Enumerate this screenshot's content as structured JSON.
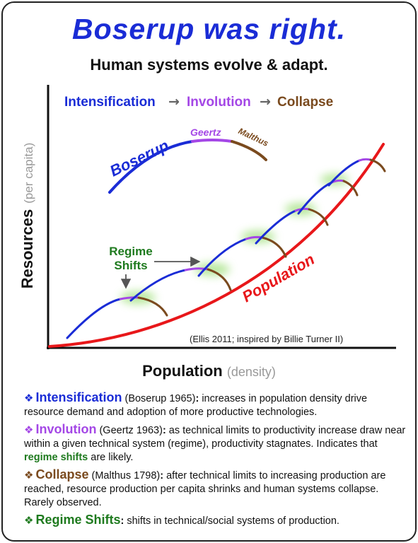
{
  "title": "Boserup was right.",
  "subtitle": "Human systems evolve & adapt.",
  "phase_row": {
    "intensification": "Intensification",
    "involution": "Involution",
    "collapse": "Collapse",
    "arrow": "→"
  },
  "mini_curve_labels": {
    "boserup": "Boserup",
    "geertz": "Geertz",
    "malthus": "Malthus"
  },
  "regime_shifts_label_1": "Regime",
  "regime_shifts_label_2": "Shifts",
  "population_label": "Population",
  "citation": "(Ellis 2011; inspired by Billie Turner II)",
  "y_axis": {
    "label": "Resources",
    "sub": "(per capita)"
  },
  "x_axis": {
    "label": "Population",
    "sub": "(density)"
  },
  "legend": [
    {
      "marker": "❖",
      "term": "Intensification",
      "source": " (Boserup 1965)",
      "colon": ":",
      "text": " increases in population density drive resource demand and adoption of more productive technologies."
    },
    {
      "marker": "❖",
      "term": "Involution",
      "source": " (Geertz 1963)",
      "colon": ":",
      "text": " as technical limits to productivity increase draw near within a given technical system (regime), productivity stagnates. Indicates that ",
      "bold": "regime shifts",
      "text_after": " are likely."
    },
    {
      "marker": "❖",
      "term": "Collapse",
      "source": " (Malthus 1798)",
      "colon": ":",
      "text": " after technical limits to increasing production are reached, resource production per capita shrinks and human systems collapse. Rarely observed."
    },
    {
      "marker": "❖",
      "term": "Regime Shifts",
      "source": "",
      "colon": ":",
      "text": " shifts in technical/social systems of production."
    }
  ],
  "colors": {
    "intensification": "#1a2cd6",
    "involution": "#a447e6",
    "collapse": "#7a4a1e",
    "regime_shift": "#1e7a1e",
    "population": "#e8171a"
  }
}
